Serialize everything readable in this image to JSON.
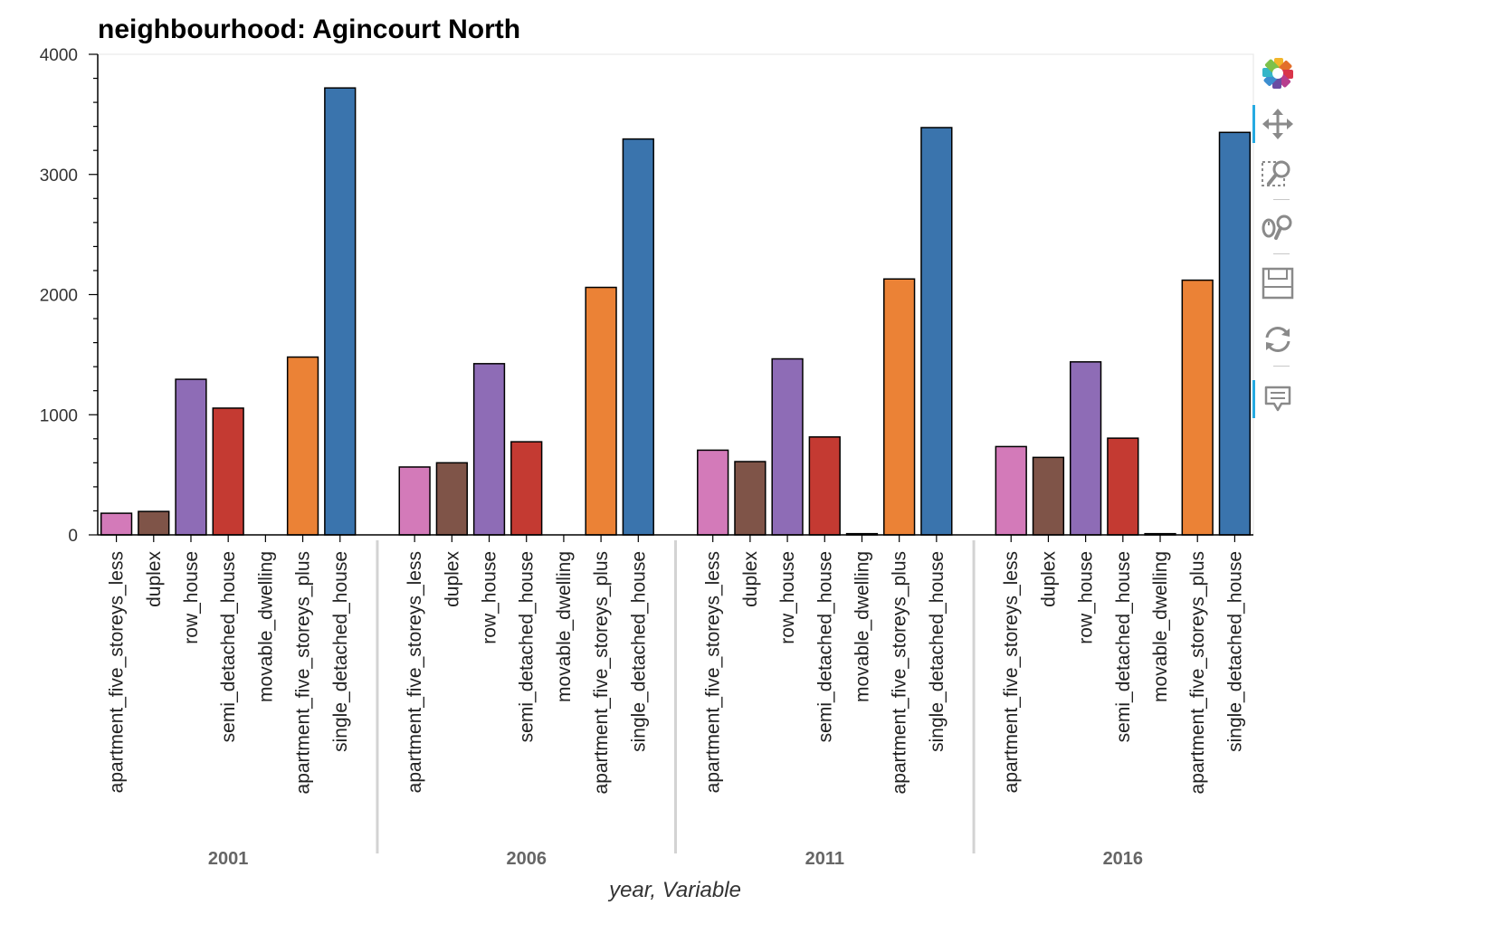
{
  "chart_data": {
    "type": "bar",
    "title": "neighbourhood: Agincourt North",
    "xlabel": "year, Variable",
    "ylabel": "",
    "ylim": [
      0,
      4000
    ],
    "yticks": [
      "0",
      "1000",
      "2000",
      "3000",
      "4000"
    ],
    "groups": [
      "2001",
      "2006",
      "2011",
      "2016"
    ],
    "categories": [
      "apartment_five_storeys_less",
      "duplex",
      "row_house",
      "semi_detached_house",
      "movable_dwelling",
      "apartment_five_storeys_plus",
      "single_detached_house"
    ],
    "colors": [
      "#d37ab9",
      "#7f5448",
      "#8e6cb6",
      "#c43a32",
      "#8c8c8c",
      "#eb8236",
      "#3a74ad"
    ],
    "series": [
      {
        "group": "2001",
        "values": [
          180,
          195,
          1295,
          1055,
          0,
          1480,
          3720
        ]
      },
      {
        "group": "2006",
        "values": [
          565,
          600,
          1425,
          775,
          0,
          2060,
          3295
        ]
      },
      {
        "group": "2011",
        "values": [
          705,
          610,
          1465,
          815,
          10,
          2130,
          3390
        ]
      },
      {
        "group": "2016",
        "values": [
          735,
          645,
          1440,
          805,
          10,
          2120,
          3350
        ]
      }
    ],
    "grid": false,
    "legend": "none"
  },
  "toolbar": {
    "tools": [
      {
        "icon": "bokeh-logo-icon",
        "active": false
      },
      {
        "icon": "pan-icon",
        "active": true
      },
      {
        "icon": "box-zoom-icon",
        "active": false
      },
      {
        "icon": "wheel-zoom-icon",
        "active": false
      },
      {
        "icon": "save-icon",
        "active": false
      },
      {
        "icon": "reset-icon",
        "active": false
      },
      {
        "icon": "hover-icon",
        "active": true
      }
    ]
  }
}
